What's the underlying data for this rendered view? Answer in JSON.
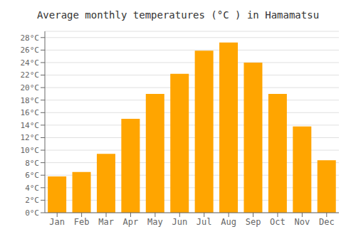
{
  "chart_data": {
    "type": "bar",
    "title": "Average monthly temperatures (°C ) in Hamamatsu",
    "categories": [
      "Jan",
      "Feb",
      "Mar",
      "Apr",
      "May",
      "Jun",
      "Jul",
      "Aug",
      "Sep",
      "Oct",
      "Nov",
      "Dec"
    ],
    "values": [
      5.8,
      6.5,
      9.4,
      15.0,
      19.0,
      22.2,
      25.9,
      27.2,
      24.0,
      19.0,
      13.8,
      8.4
    ],
    "color": "#FFA500",
    "ylim": [
      0,
      29
    ],
    "yticks": [
      {
        "value": 0,
        "label": "0°C"
      },
      {
        "value": 2,
        "label": "2°C"
      },
      {
        "value": 4,
        "label": "4°C"
      },
      {
        "value": 6,
        "label": "6°C"
      },
      {
        "value": 8,
        "label": "8°C"
      },
      {
        "value": 10,
        "label": "10°C"
      },
      {
        "value": 12,
        "label": "12°C"
      },
      {
        "value": 14,
        "label": "14°C"
      },
      {
        "value": 16,
        "label": "16°C"
      },
      {
        "value": 18,
        "label": "18°C"
      },
      {
        "value": 20,
        "label": "20°C"
      },
      {
        "value": 22,
        "label": "22°C"
      },
      {
        "value": 24,
        "label": "24°C"
      },
      {
        "value": 26,
        "label": "26°C"
      },
      {
        "value": 28,
        "label": "28°C"
      }
    ],
    "grid": true
  }
}
